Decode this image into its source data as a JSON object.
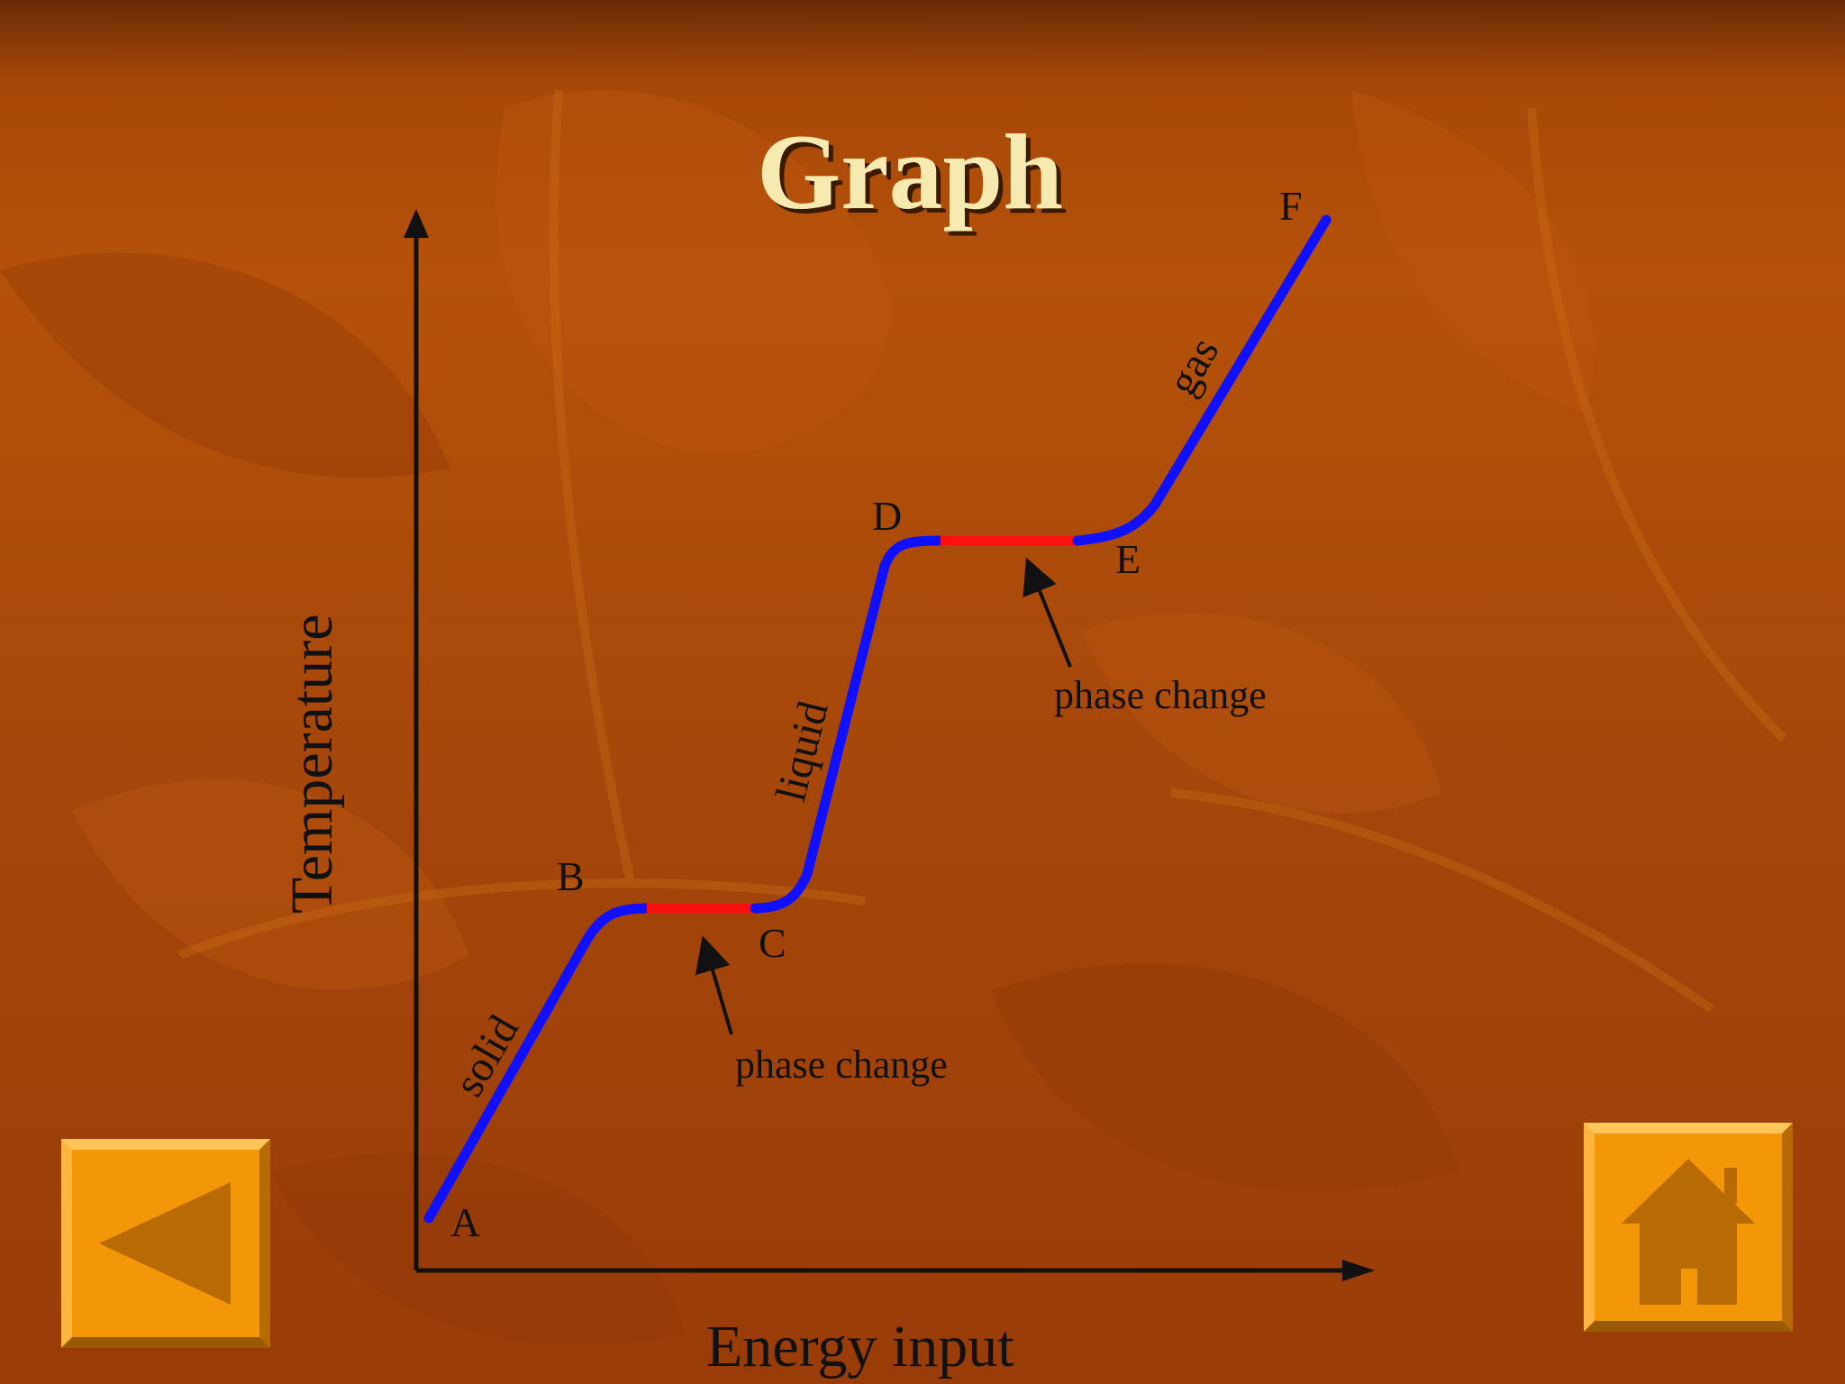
{
  "slide": {
    "title": "Graph"
  },
  "diagram": {
    "axis_labels": {
      "x": "Energy input",
      "y": "Temperature"
    },
    "points": {
      "A": "A",
      "B": "B",
      "C": "C",
      "D": "D",
      "E": "E",
      "F": "F"
    },
    "segment_labels": {
      "solid": "solid",
      "liquid": "liquid",
      "gas": "gas"
    },
    "annotations": {
      "phase_change_1": "phase change",
      "phase_change_2": "phase change"
    },
    "colors": {
      "state_line": "#1010ff",
      "phase_change_line": "#ff1010",
      "axis": "#111111"
    }
  },
  "navigation": {
    "back_icon": "left-triangle-icon",
    "home_icon": "home-icon",
    "button_color": "#f39608",
    "icon_color": "#b86a04"
  }
}
